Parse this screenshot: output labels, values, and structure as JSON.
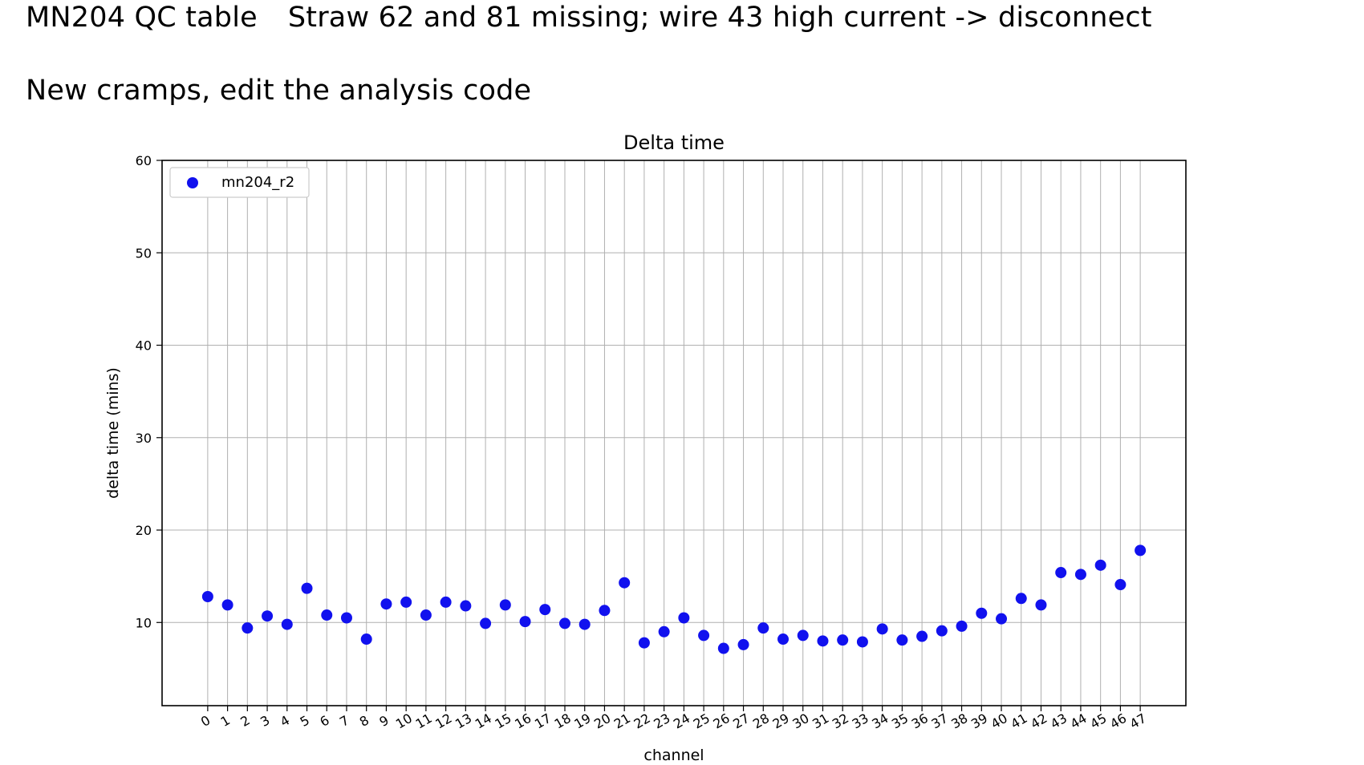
{
  "slide": {
    "title": "MN204 QC table",
    "note": "Straw 62 and 81 missing; wire 43 high current -> disconnect",
    "subtitle": "New cramps, edit the analysis code"
  },
  "chart_data": {
    "type": "scatter",
    "title": "Delta time",
    "xlabel": "channel",
    "ylabel": "delta time (mins)",
    "xlim": [
      -2.3,
      49.3
    ],
    "ylim": [
      1,
      60
    ],
    "yticks": [
      10,
      20,
      30,
      40,
      50,
      60
    ],
    "grid": true,
    "legend_position": "top-left",
    "series": [
      {
        "name": "mn204_r2",
        "color": "#1111ee",
        "x": [
          0,
          1,
          2,
          3,
          4,
          5,
          6,
          7,
          8,
          9,
          10,
          11,
          12,
          13,
          14,
          15,
          16,
          17,
          18,
          19,
          20,
          21,
          22,
          23,
          24,
          25,
          26,
          27,
          28,
          29,
          30,
          31,
          32,
          33,
          34,
          35,
          36,
          37,
          38,
          39,
          40,
          41,
          42,
          43,
          44,
          45,
          46,
          47
        ],
        "y": [
          12.8,
          11.9,
          9.4,
          10.7,
          9.8,
          13.7,
          10.8,
          10.5,
          8.2,
          12.0,
          12.2,
          10.8,
          12.2,
          11.8,
          9.9,
          11.9,
          10.1,
          11.4,
          9.9,
          9.8,
          11.3,
          14.3,
          7.8,
          9.0,
          10.5,
          8.6,
          7.2,
          7.6,
          9.4,
          8.2,
          8.6,
          8.0,
          8.1,
          7.9,
          9.3,
          8.1,
          8.5,
          9.1,
          9.6,
          11.0,
          10.4,
          12.6,
          11.9,
          15.4,
          15.2,
          16.2,
          14.1,
          17.8
        ]
      }
    ]
  }
}
